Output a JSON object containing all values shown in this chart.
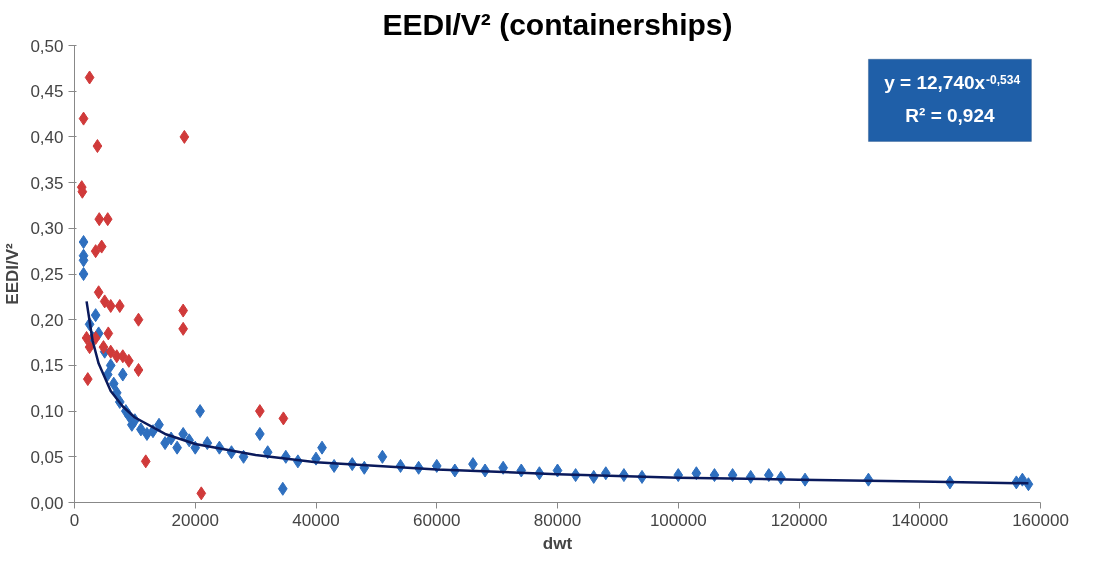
{
  "chart_data": {
    "type": "scatter",
    "title": "EEDI/V² (containerships)",
    "xlabel": "dwt",
    "ylabel": "EEDI/V²",
    "annotations": [
      "y = 12,740x$^{-0,534}$",
      "R² = 0,924"
    ],
    "xlim": [
      0,
      160000
    ],
    "xticks": [
      0,
      20000,
      40000,
      60000,
      80000,
      100000,
      120000,
      140000,
      160000
    ],
    "ylim": [
      0,
      0.5
    ],
    "yticks": [
      {
        "value": 0,
        "label": "0,00"
      },
      {
        "value": 0.05,
        "label": "0,05"
      },
      {
        "value": 0.1,
        "label": "0,10"
      },
      {
        "value": 0.15,
        "label": "0,15"
      },
      {
        "value": 0.2,
        "label": "0,20"
      },
      {
        "value": 0.25,
        "label": "0,25"
      },
      {
        "value": 0.3,
        "label": "0,30"
      },
      {
        "value": 0.35,
        "label": "0,35"
      },
      {
        "value": 0.4,
        "label": "0,40"
      },
      {
        "value": 0.45,
        "label": "0,45"
      },
      {
        "value": 0.5,
        "label": "0,50"
      }
    ],
    "grid": false,
    "marker": "diamond",
    "series": [
      {
        "color": "#2e6fbf",
        "x": [
          1500,
          1500,
          1500,
          1500,
          2500,
          3000,
          3500,
          4000,
          5000,
          5500,
          6000,
          6500,
          7000,
          7500,
          8000,
          8500,
          9000,
          9500,
          10000,
          11000,
          12000,
          13000,
          14000,
          15000,
          16000,
          17000,
          18000,
          19000,
          20000,
          20800,
          22000,
          24000,
          26000,
          28000,
          30700,
          32000,
          34500,
          35000,
          37000,
          40000,
          41000,
          43000,
          46000,
          48000,
          51000,
          54000,
          57000,
          60000,
          63000,
          66000,
          68000,
          71000,
          74000,
          77000,
          80000,
          83000,
          86000,
          88000,
          91000,
          94000,
          100000,
          103000,
          106000,
          109000,
          112000,
          115000,
          117000,
          121000,
          131500,
          145000,
          156000,
          157000,
          158000
        ],
        "values": [
          0.285,
          0.27,
          0.265,
          0.25,
          0.195,
          0.18,
          0.205,
          0.185,
          0.165,
          0.14,
          0.15,
          0.13,
          0.12,
          0.11,
          0.14,
          0.1,
          0.095,
          0.085,
          0.09,
          0.08,
          0.075,
          0.078,
          0.085,
          0.065,
          0.07,
          0.06,
          0.075,
          0.068,
          0.06,
          0.1,
          0.065,
          0.06,
          0.055,
          0.05,
          0.075,
          0.055,
          0.015,
          0.05,
          0.045,
          0.048,
          0.06,
          0.04,
          0.042,
          0.038,
          0.05,
          0.04,
          0.038,
          0.04,
          0.035,
          0.042,
          0.035,
          0.038,
          0.035,
          0.032,
          0.035,
          0.03,
          0.028,
          0.032,
          0.03,
          0.028,
          0.03,
          0.032,
          0.03,
          0.03,
          0.028,
          0.03,
          0.027,
          0.025,
          0.025,
          0.022,
          0.022,
          0.025,
          0.02
        ]
      },
      {
        "color": "#d03a3a",
        "x": [
          2500,
          1500,
          3800,
          1200,
          1300,
          4100,
          5500,
          3500,
          4500,
          4000,
          5000,
          6000,
          7500,
          3500,
          4800,
          6000,
          7000,
          2500,
          2000,
          2200,
          10600,
          10600,
          11800,
          8000,
          9000,
          18200,
          18000,
          18000,
          21000,
          30700,
          34600,
          5600
        ],
        "values": [
          0.465,
          0.42,
          0.39,
          0.345,
          0.34,
          0.31,
          0.31,
          0.275,
          0.28,
          0.23,
          0.22,
          0.215,
          0.215,
          0.18,
          0.17,
          0.165,
          0.16,
          0.17,
          0.18,
          0.135,
          0.2,
          0.145,
          0.045,
          0.16,
          0.155,
          0.4,
          0.21,
          0.19,
          0.01,
          0.1,
          0.092,
          0.185
        ]
      },
      {
        "type": "line",
        "color": "#0a1a5c",
        "marker": "none",
        "x": [
          2000,
          3000,
          4000,
          6000,
          8000,
          10000,
          15000,
          20000,
          30000,
          40000,
          60000,
          80000,
          100000,
          120000,
          140000,
          158000
        ],
        "values": [
          0.22,
          0.177,
          0.152,
          0.122,
          0.105,
          0.093,
          0.075,
          0.064,
          0.052,
          0.044,
          0.036,
          0.031,
          0.027,
          0.025,
          0.023,
          0.021
        ]
      }
    ]
  }
}
